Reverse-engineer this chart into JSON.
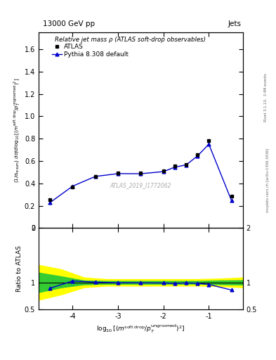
{
  "title_left": "13000 GeV pp",
  "title_right": "Jets",
  "right_label_top": "Rivet 3.1.10,  3.4M events",
  "right_label_bottom": "mcplots.cern.ch [arXiv:1306.3436]",
  "watermark": "ATLAS_2019_I1772062",
  "main_title": "Relative jet mass ρ (ATLAS soft-drop observables)",
  "ylabel_ratio": "Ratio to ATLAS",
  "xlim": [
    -4.75,
    -0.25
  ],
  "ylim_main": [
    0.0,
    1.75
  ],
  "ylim_ratio": [
    0.5,
    2.0
  ],
  "atlas_x": [
    -4.5,
    -4.0,
    -3.5,
    -3.0,
    -2.5,
    -2.0,
    -1.75,
    -1.5,
    -1.25,
    -1.0,
    -0.5
  ],
  "atlas_y": [
    0.255,
    0.365,
    0.46,
    0.49,
    0.49,
    0.51,
    0.555,
    0.57,
    0.655,
    0.78,
    0.285
  ],
  "pythia_x": [
    -4.5,
    -4.0,
    -3.5,
    -3.0,
    -2.5,
    -2.0,
    -1.75,
    -1.5,
    -1.25,
    -1.0,
    -0.5
  ],
  "pythia_y": [
    0.228,
    0.375,
    0.462,
    0.487,
    0.486,
    0.505,
    0.545,
    0.565,
    0.645,
    0.75,
    0.245
  ],
  "ratio_y": [
    0.893,
    1.027,
    1.004,
    0.994,
    0.992,
    0.99,
    0.982,
    0.991,
    0.985,
    0.963,
    0.86
  ],
  "yellow_x": [
    -4.75,
    -4.25,
    -3.75,
    -3.25,
    -2.75,
    -2.25,
    -1.75,
    -1.25,
    -0.75,
    -0.25
  ],
  "yellow_lo": [
    0.68,
    0.78,
    0.91,
    0.94,
    0.94,
    0.94,
    0.94,
    0.94,
    0.93,
    0.91
  ],
  "yellow_hi": [
    1.32,
    1.24,
    1.09,
    1.06,
    1.06,
    1.06,
    1.06,
    1.06,
    1.07,
    1.09
  ],
  "green_x": [
    -4.75,
    -4.25,
    -3.75,
    -3.25,
    -2.75,
    -2.25,
    -1.75,
    -1.25,
    -0.75,
    -0.25
  ],
  "green_lo": [
    0.82,
    0.91,
    0.965,
    0.975,
    0.975,
    0.975,
    0.975,
    0.975,
    0.965,
    0.96
  ],
  "green_hi": [
    1.18,
    1.11,
    1.035,
    1.025,
    1.025,
    1.025,
    1.025,
    1.025,
    1.035,
    1.04
  ],
  "legend_atlas": "ATLAS",
  "legend_pythia": "Pythia 8.308 default",
  "atlas_color": "#000000",
  "pythia_color": "#0000cc",
  "yellow_color": "#ffff00",
  "green_color": "#33cc33"
}
